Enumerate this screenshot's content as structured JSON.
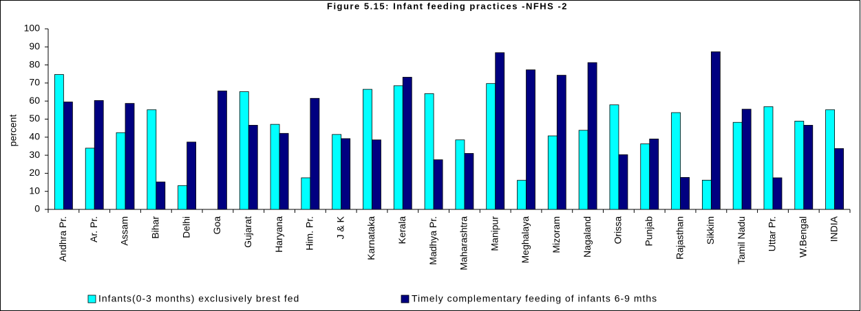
{
  "chart_data": {
    "type": "bar",
    "title": "Figure 5.15: Infant  feeding practices -NFHS -2",
    "y_label": "percent",
    "categories": [
      "Andhra Pr.",
      "Ar. Pr.",
      "Assam",
      "Bihar",
      "Delhi",
      "Goa",
      "Gujarat",
      "Haryana",
      "Him. Pr.",
      "J & K",
      "Karnataka",
      "Kerala",
      "Madhya Pr.",
      "Maharashtra",
      "Manipur",
      "Meghalaya",
      "Mizoram",
      "Nagaland",
      "Orissa",
      "Punjab",
      "Rajasthan",
      "Sikkim",
      "Tamil Nadu",
      "Uttar Pr.",
      "W.Bengal",
      "INDIA"
    ],
    "series": [
      {
        "name": "Infants(0-3 months) exclusively brest fed",
        "color": "#00ffff",
        "values": [
          74.7,
          33.9,
          42.5,
          55.2,
          13.2,
          null,
          65.2,
          47.1,
          17.5,
          41.5,
          66.5,
          68.5,
          64.1,
          38.5,
          69.7,
          16.1,
          40.7,
          43.8,
          57.9,
          36.3,
          53.6,
          16.2,
          48.2,
          56.9,
          48.9,
          55.2
        ]
      },
      {
        "name": "Timely complementary feeding of infants 6-9 mths",
        "color": "#000080",
        "values": [
          59.5,
          60.3,
          58.7,
          15.2,
          37.3,
          65.6,
          46.6,
          42.1,
          61.5,
          39.2,
          38.5,
          73.2,
          27.5,
          31.0,
          86.8,
          77.3,
          74.3,
          81.3,
          30.3,
          39.0,
          17.7,
          87.3,
          55.5,
          17.5,
          46.6,
          33.7
        ]
      }
    ],
    "ylim": [
      0,
      100
    ],
    "yticks": [
      0,
      10,
      20,
      30,
      40,
      50,
      60,
      70,
      80,
      90,
      100
    ],
    "grid": false,
    "legend": "bottom"
  }
}
